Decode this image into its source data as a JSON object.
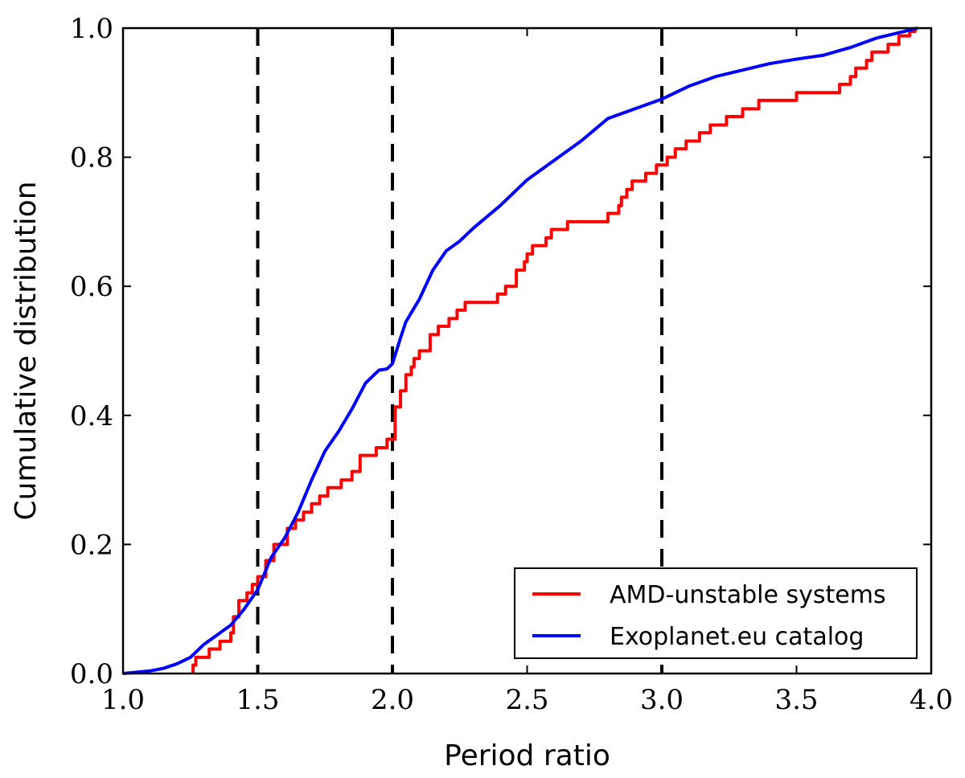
{
  "chart_data": {
    "type": "line",
    "title": "",
    "xlabel": "Period ratio",
    "ylabel": "Cumulative distribution",
    "xlim": [
      1.0,
      4.0
    ],
    "ylim": [
      0.0,
      1.0
    ],
    "x_ticks": [
      1.0,
      1.5,
      2.0,
      2.5,
      3.0,
      3.5,
      4.0
    ],
    "x_tick_labels": [
      "1.0",
      "1.5",
      "2.0",
      "2.5",
      "3.0",
      "3.5",
      "4.0"
    ],
    "y_ticks": [
      0.0,
      0.2,
      0.4,
      0.6,
      0.8,
      1.0
    ],
    "y_tick_labels": [
      "0.0",
      "0.2",
      "0.4",
      "0.6",
      "0.8",
      "1.0"
    ],
    "vlines": [
      1.5,
      2.0,
      3.0
    ],
    "legend_position": "lower-right",
    "series": [
      {
        "name": "AMD-unstable systems",
        "color": "#ff0000",
        "step": true,
        "x": [
          1.26,
          1.27,
          1.32,
          1.36,
          1.4,
          1.41,
          1.43,
          1.46,
          1.48,
          1.5,
          1.53,
          1.56,
          1.61,
          1.64,
          1.67,
          1.7,
          1.73,
          1.76,
          1.81,
          1.85,
          1.88,
          1.94,
          1.98,
          2.01,
          2.03,
          2.05,
          2.07,
          2.08,
          2.1,
          2.14,
          2.17,
          2.21,
          2.24,
          2.27,
          2.39,
          2.42,
          2.46,
          2.49,
          2.5,
          2.52,
          2.57,
          2.59,
          2.65,
          2.8,
          2.84,
          2.85,
          2.87,
          2.89,
          2.94,
          2.98,
          3.02,
          3.05,
          3.09,
          3.14,
          3.18,
          3.24,
          3.3,
          3.36,
          3.5,
          3.66,
          3.7,
          3.72,
          3.76,
          3.78,
          3.84,
          3.88,
          3.92,
          3.94
        ],
        "y": [
          0.013,
          0.025,
          0.038,
          0.05,
          0.063,
          0.088,
          0.113,
          0.125,
          0.138,
          0.15,
          0.175,
          0.2,
          0.225,
          0.238,
          0.25,
          0.263,
          0.275,
          0.288,
          0.3,
          0.313,
          0.338,
          0.35,
          0.363,
          0.413,
          0.438,
          0.463,
          0.475,
          0.488,
          0.5,
          0.525,
          0.538,
          0.55,
          0.563,
          0.575,
          0.588,
          0.6,
          0.625,
          0.638,
          0.65,
          0.663,
          0.675,
          0.688,
          0.7,
          0.713,
          0.725,
          0.738,
          0.75,
          0.763,
          0.775,
          0.788,
          0.8,
          0.813,
          0.825,
          0.838,
          0.85,
          0.863,
          0.875,
          0.888,
          0.9,
          0.913,
          0.925,
          0.938,
          0.95,
          0.963,
          0.975,
          0.988,
          0.995,
          1.0
        ]
      },
      {
        "name": "Exoplanet.eu catalog",
        "color": "#0000ff",
        "step": false,
        "x": [
          1.0,
          1.05,
          1.1,
          1.15,
          1.2,
          1.25,
          1.3,
          1.35,
          1.4,
          1.45,
          1.5,
          1.55,
          1.6,
          1.65,
          1.7,
          1.75,
          1.8,
          1.85,
          1.9,
          1.95,
          1.98,
          2.0,
          2.03,
          2.05,
          2.1,
          2.15,
          2.2,
          2.25,
          2.3,
          2.4,
          2.5,
          2.6,
          2.7,
          2.8,
          2.9,
          3.0,
          3.1,
          3.2,
          3.3,
          3.4,
          3.5,
          3.6,
          3.7,
          3.8,
          3.9,
          3.95
        ],
        "y": [
          0.0,
          0.002,
          0.004,
          0.008,
          0.015,
          0.025,
          0.045,
          0.06,
          0.075,
          0.1,
          0.13,
          0.18,
          0.21,
          0.25,
          0.3,
          0.345,
          0.375,
          0.41,
          0.45,
          0.47,
          0.472,
          0.48,
          0.52,
          0.545,
          0.58,
          0.625,
          0.655,
          0.67,
          0.69,
          0.725,
          0.765,
          0.795,
          0.825,
          0.86,
          0.875,
          0.89,
          0.91,
          0.925,
          0.935,
          0.945,
          0.952,
          0.958,
          0.97,
          0.985,
          0.995,
          1.0
        ]
      }
    ]
  }
}
